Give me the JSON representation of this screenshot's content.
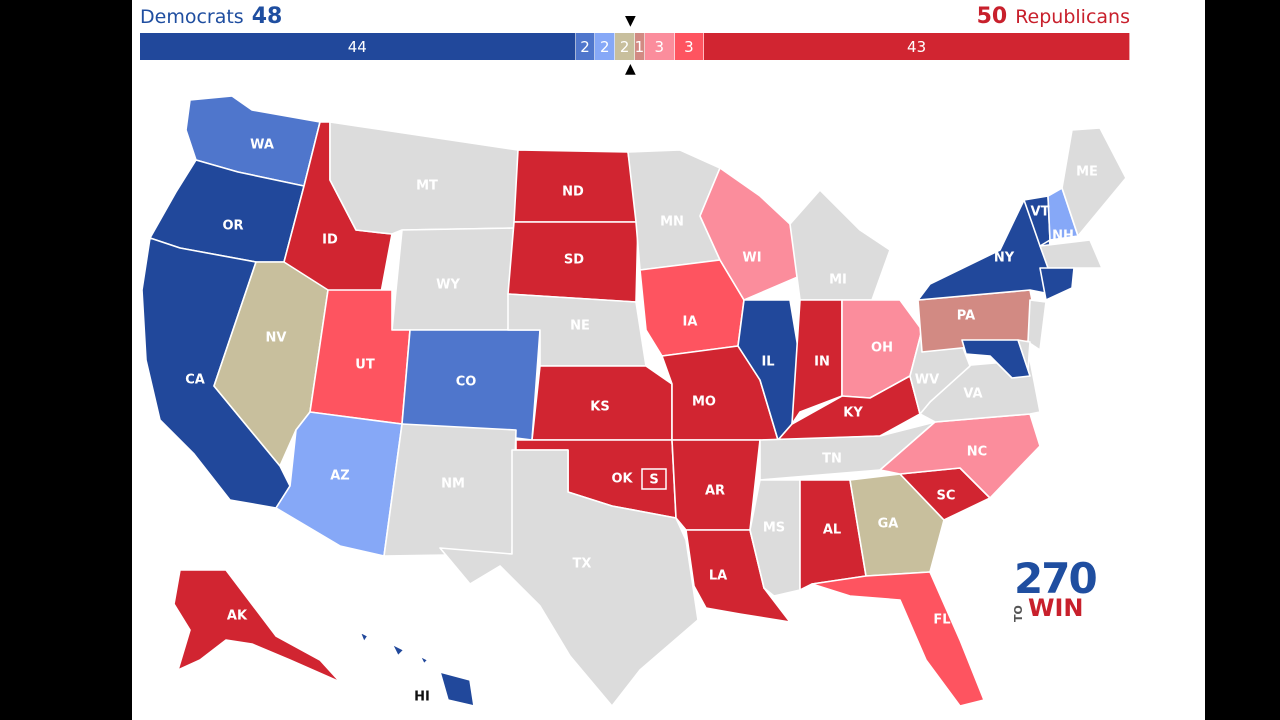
{
  "header": {
    "dem_label": "Democrats",
    "dem_count": "48",
    "rep_label": "Republicans",
    "rep_count": "50"
  },
  "colors": {
    "safe_dem": "#21489b",
    "likely_dem": "#4f76cc",
    "lean_dem": "#86a8f7",
    "tossup": "#c8bf9d",
    "tilt_rep": "#d28a83",
    "lean_rep": "#fb8d9c",
    "likely_rep": "#fe5460",
    "safe_rep": "#d12531",
    "no_race": "#dcdcdc"
  },
  "bar": [
    {
      "label": "44",
      "value": 44,
      "color": "#21489b"
    },
    {
      "label": "2",
      "value": 2,
      "color": "#4f76cc"
    },
    {
      "label": "2",
      "value": 2,
      "color": "#86a8f7"
    },
    {
      "label": "2",
      "value": 2,
      "color": "#c8bf9d"
    },
    {
      "label": "1",
      "value": 1,
      "color": "#d28a83"
    },
    {
      "label": "3",
      "value": 3,
      "color": "#fb8d9c"
    },
    {
      "label": "3",
      "value": 3,
      "color": "#fe5460"
    },
    {
      "label": "43",
      "value": 43,
      "color": "#d12531"
    }
  ],
  "markers": {
    "top": "▼",
    "bottom": "▲"
  },
  "states": {
    "WA": {
      "label": "WA",
      "rating": "likely_dem"
    },
    "OR": {
      "label": "OR",
      "rating": "safe_dem"
    },
    "CA": {
      "label": "CA",
      "rating": "safe_dem"
    },
    "ID": {
      "label": "ID",
      "rating": "safe_rep"
    },
    "NV": {
      "label": "NV",
      "rating": "tossup"
    },
    "MT": {
      "label": "MT",
      "rating": "no_race"
    },
    "WY": {
      "label": "WY",
      "rating": "no_race"
    },
    "UT": {
      "label": "UT",
      "rating": "likely_rep"
    },
    "AZ": {
      "label": "AZ",
      "rating": "lean_dem"
    },
    "CO": {
      "label": "CO",
      "rating": "likely_dem"
    },
    "NM": {
      "label": "NM",
      "rating": "no_race"
    },
    "ND": {
      "label": "ND",
      "rating": "safe_rep"
    },
    "SD": {
      "label": "SD",
      "rating": "safe_rep"
    },
    "NE": {
      "label": "NE",
      "rating": "no_race"
    },
    "KS": {
      "label": "KS",
      "rating": "safe_rep"
    },
    "OK": {
      "label": "OK",
      "rating": "safe_rep"
    },
    "TX": {
      "label": "TX",
      "rating": "no_race"
    },
    "MN": {
      "label": "MN",
      "rating": "no_race"
    },
    "IA": {
      "label": "IA",
      "rating": "likely_rep"
    },
    "MO": {
      "label": "MO",
      "rating": "safe_rep"
    },
    "AR": {
      "label": "AR",
      "rating": "safe_rep"
    },
    "LA": {
      "label": "LA",
      "rating": "safe_rep"
    },
    "WI": {
      "label": "WI",
      "rating": "lean_rep"
    },
    "IL": {
      "label": "IL",
      "rating": "safe_dem"
    },
    "MI": {
      "label": "MI",
      "rating": "no_race"
    },
    "IN": {
      "label": "IN",
      "rating": "safe_rep"
    },
    "OH": {
      "label": "OH",
      "rating": "lean_rep"
    },
    "KY": {
      "label": "KY",
      "rating": "safe_rep"
    },
    "TN": {
      "label": "TN",
      "rating": "no_race"
    },
    "MS": {
      "label": "MS",
      "rating": "no_race"
    },
    "AL": {
      "label": "AL",
      "rating": "safe_rep"
    },
    "GA": {
      "label": "GA",
      "rating": "tossup"
    },
    "FL": {
      "label": "FL",
      "rating": "likely_rep"
    },
    "SC": {
      "label": "SC",
      "rating": "safe_rep"
    },
    "NC": {
      "label": "NC",
      "rating": "lean_rep"
    },
    "VA": {
      "label": "VA",
      "rating": "no_race"
    },
    "WV": {
      "label": "WV",
      "rating": "no_race"
    },
    "PA": {
      "label": "PA",
      "rating": "tilt_rep"
    },
    "NY": {
      "label": "NY",
      "rating": "safe_dem"
    },
    "VT": {
      "label": "VT",
      "rating": "safe_dem"
    },
    "NH": {
      "label": "NH",
      "rating": "lean_dem"
    },
    "ME": {
      "label": "ME",
      "rating": "no_race"
    },
    "MA": {
      "label": "",
      "rating": "no_race"
    },
    "CT": {
      "label": "",
      "rating": "safe_dem"
    },
    "NJ": {
      "label": "",
      "rating": "no_race"
    },
    "DE": {
      "label": "",
      "rating": "no_race"
    },
    "MD": {
      "label": "",
      "rating": "safe_dem"
    },
    "AK": {
      "label": "AK",
      "rating": "safe_rep"
    },
    "HI": {
      "label": "HI",
      "rating": "safe_dem"
    }
  },
  "special_badge": "S",
  "logo": {
    "number": "270",
    "to": "TO",
    "win": "WIN"
  }
}
